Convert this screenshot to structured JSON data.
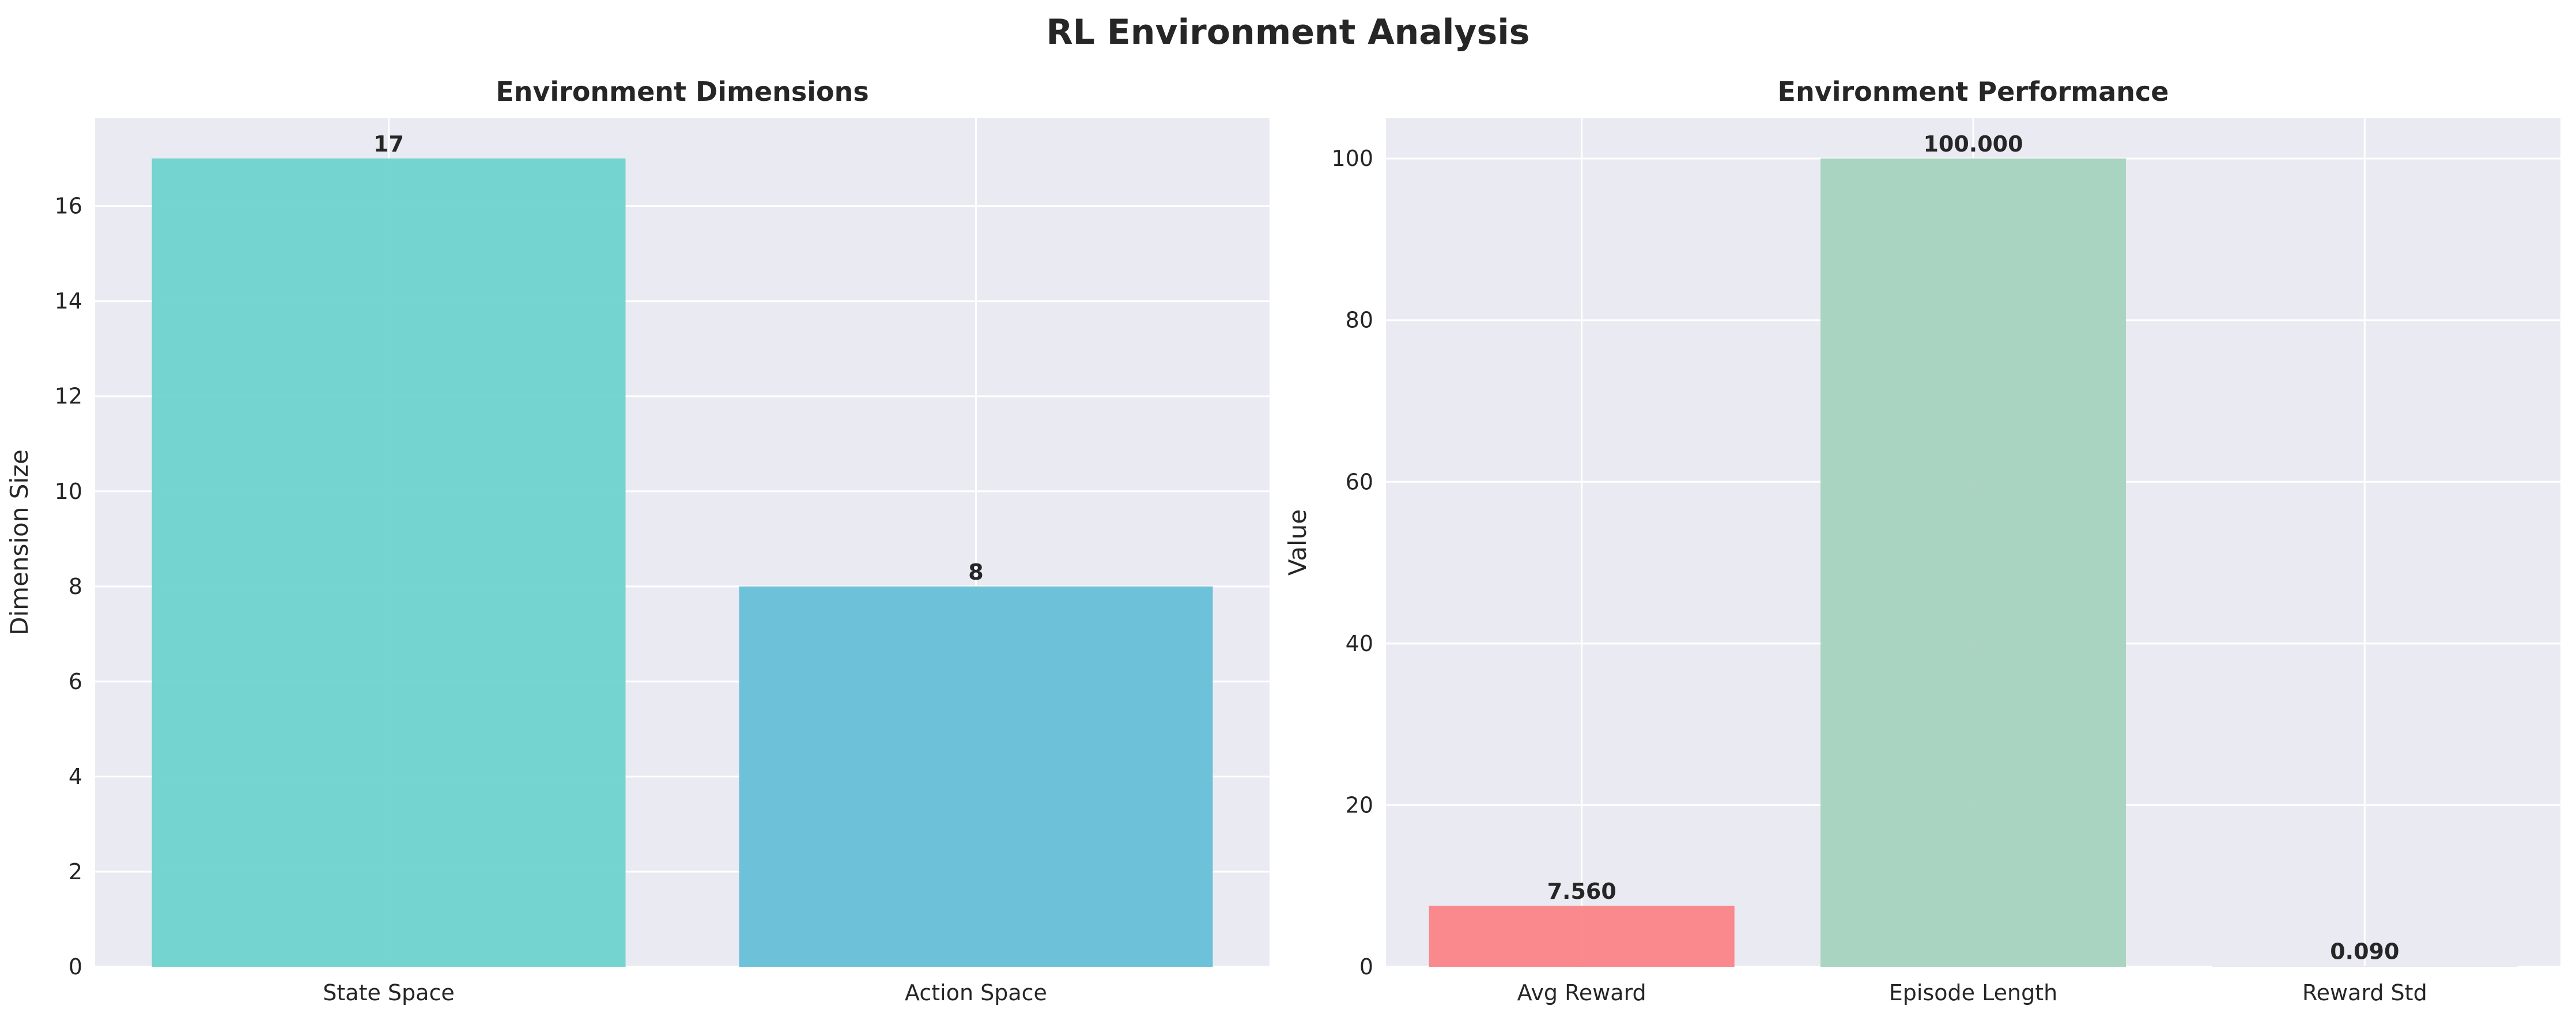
{
  "chart_data": {
    "suptitle": "RL Environment Analysis",
    "panels": [
      {
        "type": "bar",
        "title": "Environment Dimensions",
        "xlabel": "",
        "ylabel": "Dimension Size",
        "categories": [
          "State Space",
          "Action Space"
        ],
        "values": [
          17,
          8
        ],
        "data_labels": [
          "17",
          "8"
        ],
        "colors": [
          "#6ED3CD",
          "#66BFD6"
        ],
        "ylim": [
          0,
          17.85
        ],
        "yticks": [
          0,
          2,
          4,
          6,
          8,
          10,
          12,
          14,
          16
        ],
        "grid": true
      },
      {
        "type": "bar",
        "title": "Environment Performance",
        "xlabel": "",
        "ylabel": "Value",
        "categories": [
          "Avg Reward",
          "Episode Length",
          "Reward Std"
        ],
        "values": [
          7.56,
          100.0,
          0.09
        ],
        "data_labels": [
          "7.560",
          "100.000",
          "0.090"
        ],
        "colors": [
          "#FA8486",
          "#A6D3BF",
          "#E7E6EF"
        ],
        "ylim": [
          0,
          105
        ],
        "yticks": [
          0,
          20,
          40,
          60,
          80,
          100
        ],
        "grid": true
      }
    ],
    "style": {
      "plot_bg": "#EAEAF2",
      "grid_color": "#FFFFFF"
    }
  }
}
